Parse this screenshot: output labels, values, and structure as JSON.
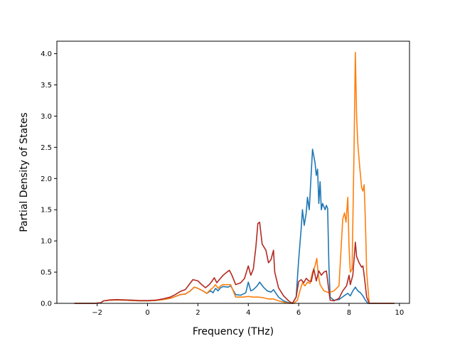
{
  "chart_data": {
    "type": "line",
    "title": "",
    "xlabel": "Frequency (THz)",
    "ylabel": "Partial Density of States",
    "xlim": [
      -3.6,
      10.4
    ],
    "ylim": [
      0,
      4.2
    ],
    "xticks": [
      -2,
      0,
      2,
      4,
      6,
      8,
      10
    ],
    "xtick_labels": [
      "−2",
      "0",
      "2",
      "4",
      "6",
      "8",
      "10"
    ],
    "yticks": [
      0,
      0.5,
      1.0,
      1.5,
      2.0,
      2.5,
      3.0,
      3.5,
      4.0
    ],
    "ytick_labels": [
      "0.0",
      "0.5",
      "1.0",
      "1.5",
      "2.0",
      "2.5",
      "3.0",
      "3.5",
      "4.0"
    ],
    "grid": false,
    "legend": "none",
    "series": [
      {
        "color": "#1f77b4",
        "points": [
          [
            -2.9,
            0
          ],
          [
            -2.1,
            0
          ],
          [
            -1.85,
            0.01
          ],
          [
            -1.75,
            0.04
          ],
          [
            -1.5,
            0.05
          ],
          [
            -1.2,
            0.055
          ],
          [
            -0.9,
            0.05
          ],
          [
            -0.6,
            0.045
          ],
          [
            -0.3,
            0.04
          ],
          [
            0,
            0.04
          ],
          [
            0.3,
            0.045
          ],
          [
            0.6,
            0.06
          ],
          [
            0.9,
            0.08
          ],
          [
            1.1,
            0.11
          ],
          [
            1.3,
            0.14
          ],
          [
            1.5,
            0.15
          ],
          [
            1.7,
            0.2
          ],
          [
            1.85,
            0.26
          ],
          [
            2.0,
            0.24
          ],
          [
            2.2,
            0.2
          ],
          [
            2.35,
            0.16
          ],
          [
            2.5,
            0.2
          ],
          [
            2.6,
            0.17
          ],
          [
            2.7,
            0.24
          ],
          [
            2.8,
            0.2
          ],
          [
            2.9,
            0.25
          ],
          [
            3.0,
            0.27
          ],
          [
            3.2,
            0.26
          ],
          [
            3.3,
            0.28
          ],
          [
            3.5,
            0.14
          ],
          [
            3.7,
            0.13
          ],
          [
            3.9,
            0.17
          ],
          [
            4.0,
            0.34
          ],
          [
            4.1,
            0.2
          ],
          [
            4.2,
            0.22
          ],
          [
            4.35,
            0.28
          ],
          [
            4.45,
            0.34
          ],
          [
            4.6,
            0.26
          ],
          [
            4.75,
            0.2
          ],
          [
            4.9,
            0.18
          ],
          [
            5.0,
            0.22
          ],
          [
            5.2,
            0.1
          ],
          [
            5.4,
            0.04
          ],
          [
            5.6,
            0.01
          ],
          [
            5.75,
            0
          ],
          [
            5.9,
            0.1
          ],
          [
            6.0,
            0.7
          ],
          [
            6.1,
            1.2
          ],
          [
            6.15,
            1.5
          ],
          [
            6.22,
            1.25
          ],
          [
            6.3,
            1.45
          ],
          [
            6.35,
            1.7
          ],
          [
            6.42,
            1.5
          ],
          [
            6.5,
            2.1
          ],
          [
            6.55,
            2.47
          ],
          [
            6.65,
            2.25
          ],
          [
            6.7,
            2.05
          ],
          [
            6.75,
            2.15
          ],
          [
            6.8,
            1.6
          ],
          [
            6.85,
            1.95
          ],
          [
            6.9,
            1.5
          ],
          [
            6.95,
            1.6
          ],
          [
            7.0,
            1.55
          ],
          [
            7.05,
            1.5
          ],
          [
            7.1,
            1.57
          ],
          [
            7.15,
            1.52
          ],
          [
            7.2,
            0.6
          ],
          [
            7.25,
            0.1
          ],
          [
            7.4,
            0.05
          ],
          [
            7.6,
            0.06
          ],
          [
            7.8,
            0.12
          ],
          [
            7.95,
            0.16
          ],
          [
            8.05,
            0.12
          ],
          [
            8.15,
            0.2
          ],
          [
            8.25,
            0.26
          ],
          [
            8.35,
            0.2
          ],
          [
            8.45,
            0.17
          ],
          [
            8.55,
            0.12
          ],
          [
            8.65,
            0.05
          ],
          [
            8.75,
            0
          ],
          [
            9.8,
            0
          ]
        ]
      },
      {
        "color": "#ff7f0e",
        "points": [
          [
            -2.9,
            0
          ],
          [
            -2.1,
            0
          ],
          [
            -1.85,
            0.01
          ],
          [
            -1.75,
            0.04
          ],
          [
            -1.5,
            0.05
          ],
          [
            -1.2,
            0.055
          ],
          [
            -0.9,
            0.05
          ],
          [
            -0.6,
            0.045
          ],
          [
            -0.3,
            0.04
          ],
          [
            0,
            0.04
          ],
          [
            0.3,
            0.045
          ],
          [
            0.6,
            0.06
          ],
          [
            0.9,
            0.08
          ],
          [
            1.1,
            0.11
          ],
          [
            1.3,
            0.14
          ],
          [
            1.5,
            0.15
          ],
          [
            1.7,
            0.2
          ],
          [
            1.85,
            0.26
          ],
          [
            2.0,
            0.24
          ],
          [
            2.2,
            0.2
          ],
          [
            2.35,
            0.16
          ],
          [
            2.5,
            0.22
          ],
          [
            2.6,
            0.25
          ],
          [
            2.7,
            0.3
          ],
          [
            2.8,
            0.24
          ],
          [
            2.9,
            0.28
          ],
          [
            3.0,
            0.3
          ],
          [
            3.2,
            0.3
          ],
          [
            3.3,
            0.3
          ],
          [
            3.5,
            0.1
          ],
          [
            3.8,
            0.1
          ],
          [
            4.0,
            0.11
          ],
          [
            4.2,
            0.1
          ],
          [
            4.4,
            0.1
          ],
          [
            4.6,
            0.09
          ],
          [
            4.8,
            0.07
          ],
          [
            5.0,
            0.07
          ],
          [
            5.2,
            0.04
          ],
          [
            5.4,
            0.02
          ],
          [
            5.6,
            0
          ],
          [
            5.8,
            0
          ],
          [
            5.95,
            0.05
          ],
          [
            6.05,
            0.2
          ],
          [
            6.15,
            0.33
          ],
          [
            6.25,
            0.28
          ],
          [
            6.35,
            0.34
          ],
          [
            6.45,
            0.32
          ],
          [
            6.55,
            0.5
          ],
          [
            6.65,
            0.6
          ],
          [
            6.72,
            0.72
          ],
          [
            6.78,
            0.45
          ],
          [
            6.85,
            0.3
          ],
          [
            7.0,
            0.2
          ],
          [
            7.2,
            0.17
          ],
          [
            7.4,
            0.2
          ],
          [
            7.6,
            0.28
          ],
          [
            7.75,
            1.35
          ],
          [
            7.82,
            1.45
          ],
          [
            7.88,
            1.3
          ],
          [
            7.95,
            1.7
          ],
          [
            8.0,
            0.9
          ],
          [
            8.05,
            0.5
          ],
          [
            8.12,
            0.55
          ],
          [
            8.2,
            2.5
          ],
          [
            8.25,
            4.02
          ],
          [
            8.3,
            3.0
          ],
          [
            8.35,
            2.55
          ],
          [
            8.42,
            2.2
          ],
          [
            8.5,
            1.85
          ],
          [
            8.55,
            1.8
          ],
          [
            8.6,
            1.9
          ],
          [
            8.65,
            1.3
          ],
          [
            8.7,
            0.5
          ],
          [
            8.8,
            0
          ],
          [
            9.8,
            0
          ]
        ]
      },
      {
        "color": "#b22a22",
        "points": [
          [
            -2.9,
            0
          ],
          [
            -2.1,
            0
          ],
          [
            -1.85,
            0.01
          ],
          [
            -1.75,
            0.04
          ],
          [
            -1.5,
            0.055
          ],
          [
            -1.2,
            0.06
          ],
          [
            -0.9,
            0.055
          ],
          [
            -0.6,
            0.05
          ],
          [
            -0.3,
            0.045
          ],
          [
            0,
            0.045
          ],
          [
            0.3,
            0.05
          ],
          [
            0.6,
            0.07
          ],
          [
            0.9,
            0.1
          ],
          [
            1.1,
            0.14
          ],
          [
            1.3,
            0.19
          ],
          [
            1.5,
            0.22
          ],
          [
            1.65,
            0.3
          ],
          [
            1.8,
            0.38
          ],
          [
            2.0,
            0.36
          ],
          [
            2.15,
            0.3
          ],
          [
            2.3,
            0.25
          ],
          [
            2.45,
            0.3
          ],
          [
            2.55,
            0.35
          ],
          [
            2.65,
            0.41
          ],
          [
            2.75,
            0.33
          ],
          [
            2.85,
            0.38
          ],
          [
            3.0,
            0.45
          ],
          [
            3.15,
            0.5
          ],
          [
            3.25,
            0.53
          ],
          [
            3.35,
            0.45
          ],
          [
            3.5,
            0.3
          ],
          [
            3.7,
            0.33
          ],
          [
            3.85,
            0.4
          ],
          [
            4.0,
            0.6
          ],
          [
            4.1,
            0.45
          ],
          [
            4.2,
            0.55
          ],
          [
            4.3,
            0.9
          ],
          [
            4.38,
            1.28
          ],
          [
            4.45,
            1.3
          ],
          [
            4.55,
            0.95
          ],
          [
            4.7,
            0.85
          ],
          [
            4.8,
            0.65
          ],
          [
            4.9,
            0.7
          ],
          [
            5.0,
            0.85
          ],
          [
            5.05,
            0.5
          ],
          [
            5.2,
            0.25
          ],
          [
            5.4,
            0.12
          ],
          [
            5.6,
            0.04
          ],
          [
            5.75,
            0
          ],
          [
            5.9,
            0.1
          ],
          [
            6.0,
            0.35
          ],
          [
            6.1,
            0.38
          ],
          [
            6.2,
            0.33
          ],
          [
            6.3,
            0.4
          ],
          [
            6.4,
            0.36
          ],
          [
            6.5,
            0.35
          ],
          [
            6.6,
            0.55
          ],
          [
            6.7,
            0.36
          ],
          [
            6.8,
            0.52
          ],
          [
            6.9,
            0.45
          ],
          [
            7.0,
            0.5
          ],
          [
            7.1,
            0.52
          ],
          [
            7.2,
            0.2
          ],
          [
            7.25,
            0.05
          ],
          [
            7.4,
            0.04
          ],
          [
            7.6,
            0.08
          ],
          [
            7.75,
            0.2
          ],
          [
            7.9,
            0.28
          ],
          [
            8.0,
            0.45
          ],
          [
            8.05,
            0.3
          ],
          [
            8.15,
            0.45
          ],
          [
            8.25,
            0.98
          ],
          [
            8.3,
            0.75
          ],
          [
            8.4,
            0.65
          ],
          [
            8.5,
            0.58
          ],
          [
            8.55,
            0.6
          ],
          [
            8.6,
            0.45
          ],
          [
            8.7,
            0.1
          ],
          [
            8.8,
            0
          ],
          [
            9.8,
            0
          ]
        ]
      }
    ]
  }
}
